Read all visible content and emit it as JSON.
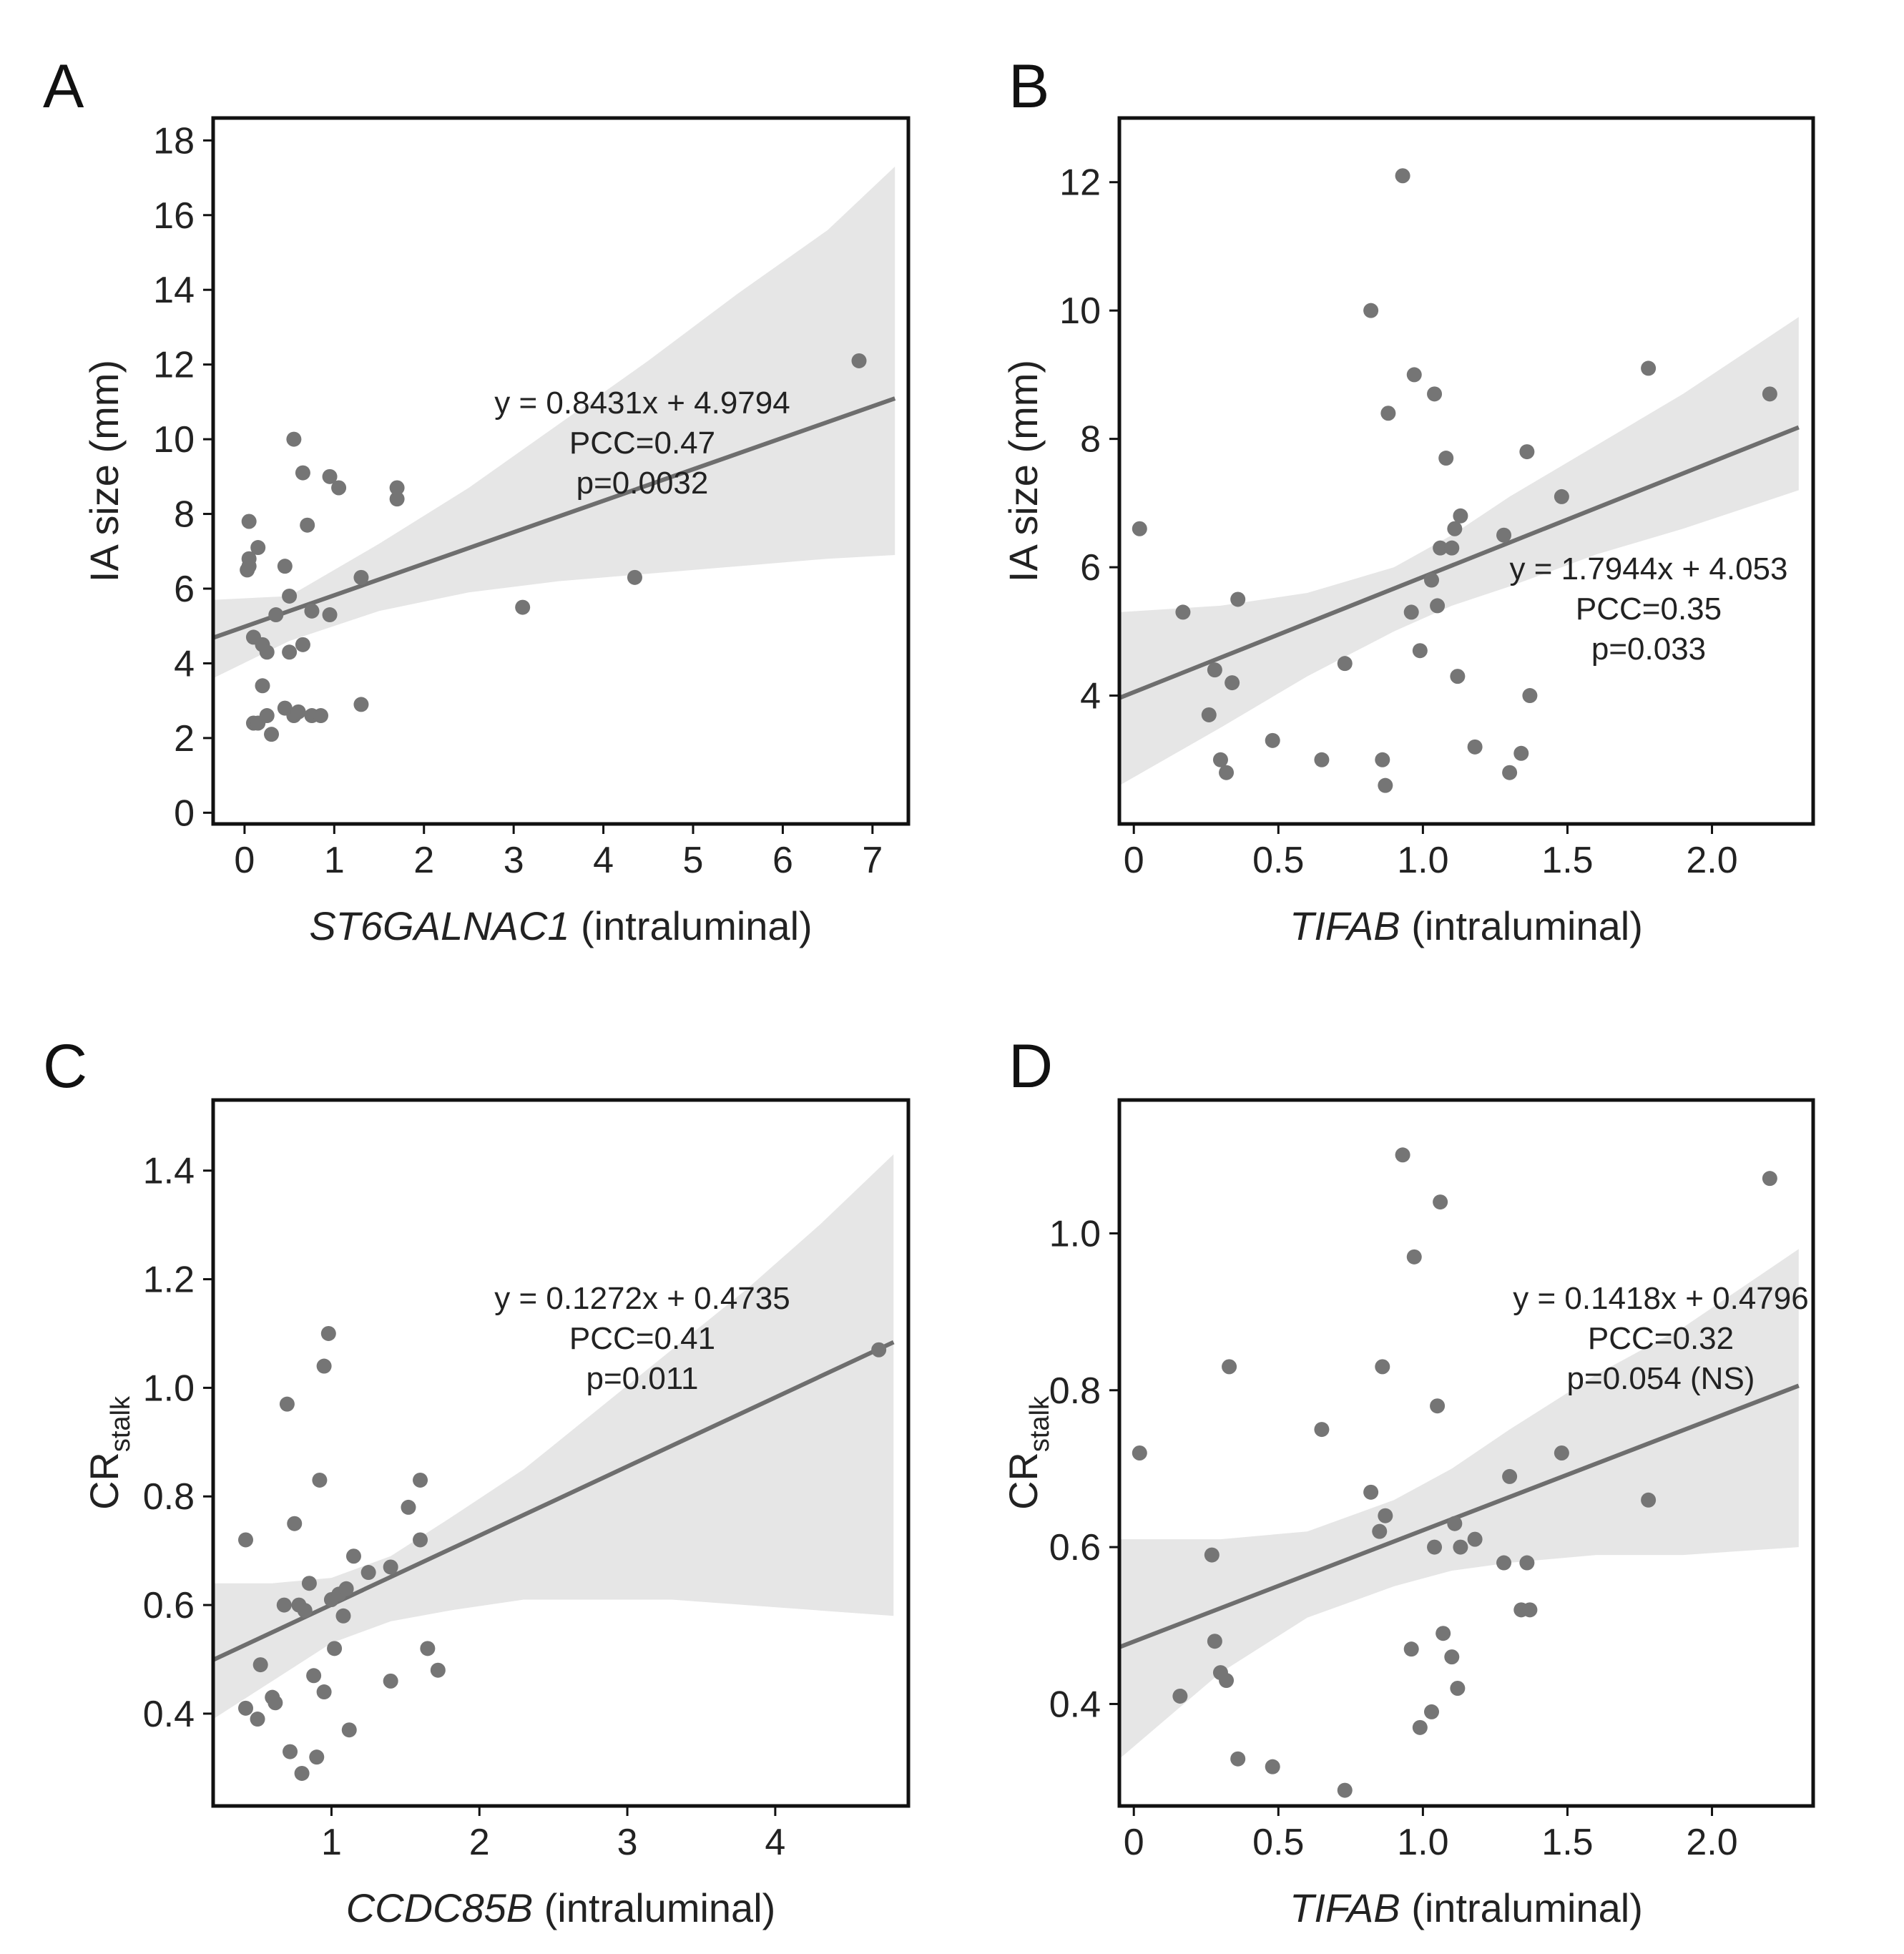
{
  "chart_data": [
    {
      "panel": "A",
      "type": "scatter",
      "title": "",
      "xlabel_gene": "ST6GALNAC1",
      "xlabel_rest": " (intraluminal)",
      "ylabel": "IA size (mm)",
      "ylabel_sub": "",
      "xlim": [
        -0.35,
        7.4
      ],
      "ylim": [
        -0.3,
        18.6
      ],
      "xticks": [
        0,
        1,
        2,
        3,
        4,
        5,
        6,
        7
      ],
      "xtick_labels": [
        "0",
        "1",
        "2",
        "3",
        "4",
        "5",
        "6",
        "7"
      ],
      "yticks": [
        0,
        2,
        4,
        6,
        8,
        10,
        12,
        14,
        16,
        18
      ],
      "ytick_labels": [
        "0",
        "2",
        "4",
        "6",
        "8",
        "10",
        "12",
        "14",
        "16",
        "18"
      ],
      "fit": {
        "slope": 0.8431,
        "intercept": 4.9794,
        "x_range": [
          -0.35,
          7.25
        ]
      },
      "ci_band": {
        "x": [
          -0.35,
          0.5,
          1.5,
          2.5,
          3.5,
          4.5,
          5.5,
          6.5,
          7.25
        ],
        "upper": [
          5.7,
          5.8,
          7.2,
          8.7,
          10.4,
          12.1,
          13.9,
          15.6,
          17.3
        ],
        "lower": [
          3.6,
          4.6,
          5.4,
          5.9,
          6.2,
          6.4,
          6.6,
          6.8,
          6.9
        ]
      },
      "annotations": [
        "y = 0.8431x + 4.9794",
        "PCC=0.47",
        "p=0.0032"
      ],
      "points": {
        "x": [
          0.03,
          0.05,
          0.05,
          0.05,
          0.1,
          0.1,
          0.15,
          0.15,
          0.2,
          0.2,
          0.25,
          0.25,
          0.3,
          0.35,
          0.45,
          0.45,
          0.5,
          0.5,
          0.55,
          0.55,
          0.6,
          0.65,
          0.65,
          0.7,
          0.75,
          0.75,
          0.85,
          0.95,
          0.95,
          1.05,
          1.3,
          1.3,
          1.7,
          1.7,
          3.1,
          4.35,
          6.85
        ],
        "y": [
          6.5,
          6.6,
          6.8,
          7.8,
          2.4,
          4.7,
          2.4,
          7.1,
          3.4,
          4.5,
          2.6,
          4.3,
          2.1,
          5.3,
          2.8,
          6.6,
          4.3,
          5.8,
          2.6,
          10.0,
          2.7,
          4.5,
          9.1,
          7.7,
          5.4,
          2.6,
          2.6,
          9.0,
          5.3,
          8.7,
          6.3,
          2.9,
          8.4,
          8.7,
          5.5,
          6.3,
          12.1
        ]
      }
    },
    {
      "panel": "B",
      "type": "scatter",
      "title": "",
      "xlabel_gene": "TIFAB",
      "xlabel_rest": " (intraluminal)",
      "ylabel": "IA size (mm)",
      "ylabel_sub": "",
      "xlim": [
        -0.05,
        2.35
      ],
      "ylim": [
        2.0,
        13.0
      ],
      "xticks": [
        0,
        0.5,
        1.0,
        1.5,
        2.0
      ],
      "xtick_labels": [
        "0",
        "0.5",
        "1.0",
        "1.5",
        "2.0"
      ],
      "yticks": [
        4,
        6,
        8,
        10,
        12
      ],
      "ytick_labels": [
        "4",
        "6",
        "8",
        "10",
        "12"
      ],
      "fit": {
        "slope": 1.7944,
        "intercept": 4.053,
        "x_range": [
          -0.05,
          2.3
        ]
      },
      "ci_band": {
        "x": [
          -0.05,
          0.3,
          0.6,
          0.9,
          1.1,
          1.3,
          1.6,
          1.9,
          2.3
        ],
        "upper": [
          5.3,
          5.4,
          5.6,
          6.0,
          6.5,
          7.1,
          7.9,
          8.7,
          9.9
        ],
        "lower": [
          2.6,
          3.5,
          4.3,
          5.0,
          5.4,
          5.7,
          6.2,
          6.6,
          7.2
        ]
      },
      "annotations": [
        "y = 1.7944x + 4.053",
        "PCC=0.35",
        "p=0.033"
      ],
      "points": {
        "x": [
          0.02,
          0.17,
          0.26,
          0.28,
          0.3,
          0.32,
          0.34,
          0.36,
          0.48,
          0.65,
          0.73,
          0.82,
          0.86,
          0.87,
          0.88,
          0.93,
          0.96,
          0.97,
          0.99,
          1.03,
          1.04,
          1.05,
          1.06,
          1.08,
          1.1,
          1.11,
          1.12,
          1.13,
          1.18,
          1.28,
          1.3,
          1.34,
          1.36,
          1.37,
          1.48,
          1.78,
          2.2
        ],
        "y": [
          6.6,
          5.3,
          3.7,
          4.4,
          3.0,
          2.8,
          4.2,
          5.5,
          3.3,
          3.0,
          4.5,
          10.0,
          3.0,
          2.6,
          8.4,
          12.1,
          5.3,
          9.0,
          4.7,
          5.8,
          8.7,
          5.4,
          6.3,
          7.7,
          6.3,
          6.6,
          4.3,
          6.8,
          3.2,
          6.5,
          2.8,
          3.1,
          7.8,
          4.0,
          7.1,
          9.1,
          8.7
        ]
      }
    },
    {
      "panel": "C",
      "type": "scatter",
      "title": "",
      "xlabel_gene": "CCDC85B",
      "xlabel_rest": " (intraluminal)",
      "ylabel": "CR",
      "ylabel_sub": "stalk",
      "xlim": [
        0.2,
        4.9
      ],
      "ylim": [
        0.23,
        1.53
      ],
      "xticks": [
        1,
        2,
        3,
        4
      ],
      "xtick_labels": [
        "1",
        "2",
        "3",
        "4"
      ],
      "yticks": [
        0.4,
        0.6,
        0.8,
        1.0,
        1.2,
        1.4
      ],
      "ytick_labels": [
        "0.4",
        "0.6",
        "0.8",
        "1.0",
        "1.2",
        "1.4"
      ],
      "fit": {
        "slope": 0.1272,
        "intercept": 0.4735,
        "x_range": [
          0.2,
          4.8
        ]
      },
      "ci_band": {
        "x": [
          0.2,
          0.6,
          1.0,
          1.4,
          1.8,
          2.3,
          2.8,
          3.3,
          3.8,
          4.3,
          4.8
        ],
        "upper": [
          0.64,
          0.64,
          0.65,
          0.69,
          0.76,
          0.85,
          0.96,
          1.07,
          1.18,
          1.3,
          1.43
        ],
        "lower": [
          0.39,
          0.46,
          0.53,
          0.57,
          0.59,
          0.61,
          0.61,
          0.61,
          0.6,
          0.59,
          0.58
        ]
      },
      "annotations": [
        "y = 0.1272x + 0.4735",
        "PCC=0.41",
        "p=0.011"
      ],
      "points": {
        "x": [
          0.42,
          0.42,
          0.5,
          0.52,
          0.6,
          0.62,
          0.68,
          0.7,
          0.72,
          0.75,
          0.78,
          0.8,
          0.82,
          0.85,
          0.88,
          0.9,
          0.92,
          0.95,
          0.95,
          0.98,
          1.0,
          1.02,
          1.05,
          1.08,
          1.1,
          1.12,
          1.15,
          1.25,
          1.4,
          1.4,
          1.52,
          1.6,
          1.6,
          1.65,
          1.72,
          4.7
        ],
        "y": [
          0.72,
          0.41,
          0.39,
          0.49,
          0.43,
          0.42,
          0.6,
          0.97,
          0.33,
          0.75,
          0.6,
          0.29,
          0.59,
          0.64,
          0.47,
          0.32,
          0.83,
          1.04,
          0.44,
          1.1,
          0.61,
          0.52,
          0.62,
          0.58,
          0.63,
          0.37,
          0.69,
          0.66,
          0.67,
          0.46,
          0.78,
          0.83,
          0.72,
          0.52,
          0.48,
          1.07
        ]
      }
    },
    {
      "panel": "D",
      "type": "scatter",
      "title": "",
      "xlabel_gene": "TIFAB",
      "xlabel_rest": " (intraluminal)",
      "ylabel": "CR",
      "ylabel_sub": "stalk",
      "xlim": [
        -0.05,
        2.35
      ],
      "ylim": [
        0.27,
        1.17
      ],
      "xticks": [
        0,
        0.5,
        1.0,
        1.5,
        2.0
      ],
      "xtick_labels": [
        "0",
        "0.5",
        "1.0",
        "1.5",
        "2.0"
      ],
      "yticks": [
        0.4,
        0.6,
        0.8,
        1.0
      ],
      "ytick_labels": [
        "0.4",
        "0.6",
        "0.8",
        "1.0"
      ],
      "fit": {
        "slope": 0.1418,
        "intercept": 0.4796,
        "x_range": [
          -0.05,
          2.3
        ]
      },
      "ci_band": {
        "x": [
          -0.05,
          0.3,
          0.6,
          0.9,
          1.1,
          1.3,
          1.6,
          1.9,
          2.3
        ],
        "upper": [
          0.61,
          0.61,
          0.62,
          0.66,
          0.7,
          0.75,
          0.82,
          0.88,
          0.98
        ],
        "lower": [
          0.33,
          0.44,
          0.51,
          0.55,
          0.57,
          0.58,
          0.59,
          0.59,
          0.6
        ]
      },
      "annotations": [
        "y = 0.1418x + 0.4796",
        "PCC=0.32",
        "p=0.054 (NS)"
      ],
      "points": {
        "x": [
          0.02,
          0.16,
          0.27,
          0.28,
          0.3,
          0.32,
          0.33,
          0.36,
          0.48,
          0.65,
          0.73,
          0.82,
          0.85,
          0.86,
          0.87,
          0.93,
          0.96,
          0.97,
          0.99,
          1.03,
          1.04,
          1.05,
          1.06,
          1.07,
          1.1,
          1.11,
          1.12,
          1.13,
          1.18,
          1.28,
          1.3,
          1.34,
          1.36,
          1.37,
          1.48,
          1.78,
          2.2
        ],
        "y": [
          0.72,
          0.41,
          0.59,
          0.48,
          0.44,
          0.43,
          0.83,
          0.33,
          0.32,
          0.75,
          0.29,
          0.67,
          0.62,
          0.83,
          0.64,
          1.1,
          0.47,
          0.97,
          0.37,
          0.39,
          0.6,
          0.78,
          1.04,
          0.49,
          0.46,
          0.63,
          0.42,
          0.6,
          0.61,
          0.58,
          0.69,
          0.52,
          0.58,
          0.52,
          0.72,
          0.66,
          1.07
        ]
      }
    }
  ]
}
